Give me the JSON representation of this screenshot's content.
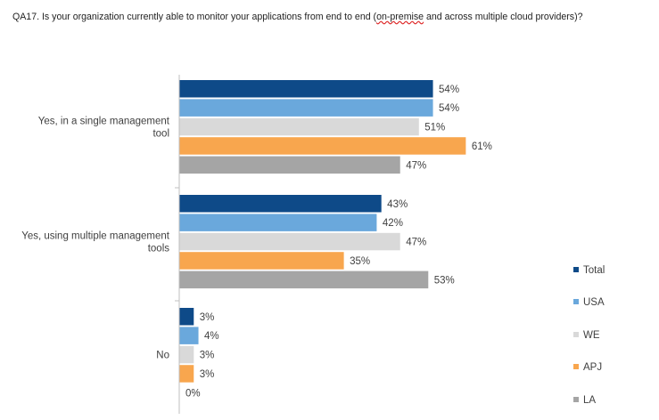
{
  "title": {
    "before": "QA17. Is your organization currently able to monitor your applications from end to end (",
    "underlined": "on-premise",
    "after": " and across multiple cloud providers)?"
  },
  "chart_data": {
    "type": "bar",
    "orientation": "horizontal",
    "categories": [
      [
        "Yes, in a single management",
        "tool"
      ],
      [
        "Yes, using multiple management",
        "tools"
      ],
      [
        "No"
      ]
    ],
    "value_format": "{v}%",
    "xlim": [
      0,
      100
    ],
    "grid": false,
    "legend": {
      "position": "right"
    },
    "series": [
      {
        "name": "Total",
        "color": "#0e4a88",
        "values": [
          54,
          43,
          3
        ]
      },
      {
        "name": "USA",
        "color": "#6aa8dc",
        "values": [
          54,
          42,
          4
        ]
      },
      {
        "name": "WE",
        "color": "#d9d9d9",
        "values": [
          51,
          47,
          3
        ]
      },
      {
        "name": "APJ",
        "color": "#f8a64e",
        "values": [
          61,
          35,
          3
        ]
      },
      {
        "name": "LA",
        "color": "#a5a5a5",
        "values": [
          47,
          53,
          0
        ]
      }
    ]
  }
}
